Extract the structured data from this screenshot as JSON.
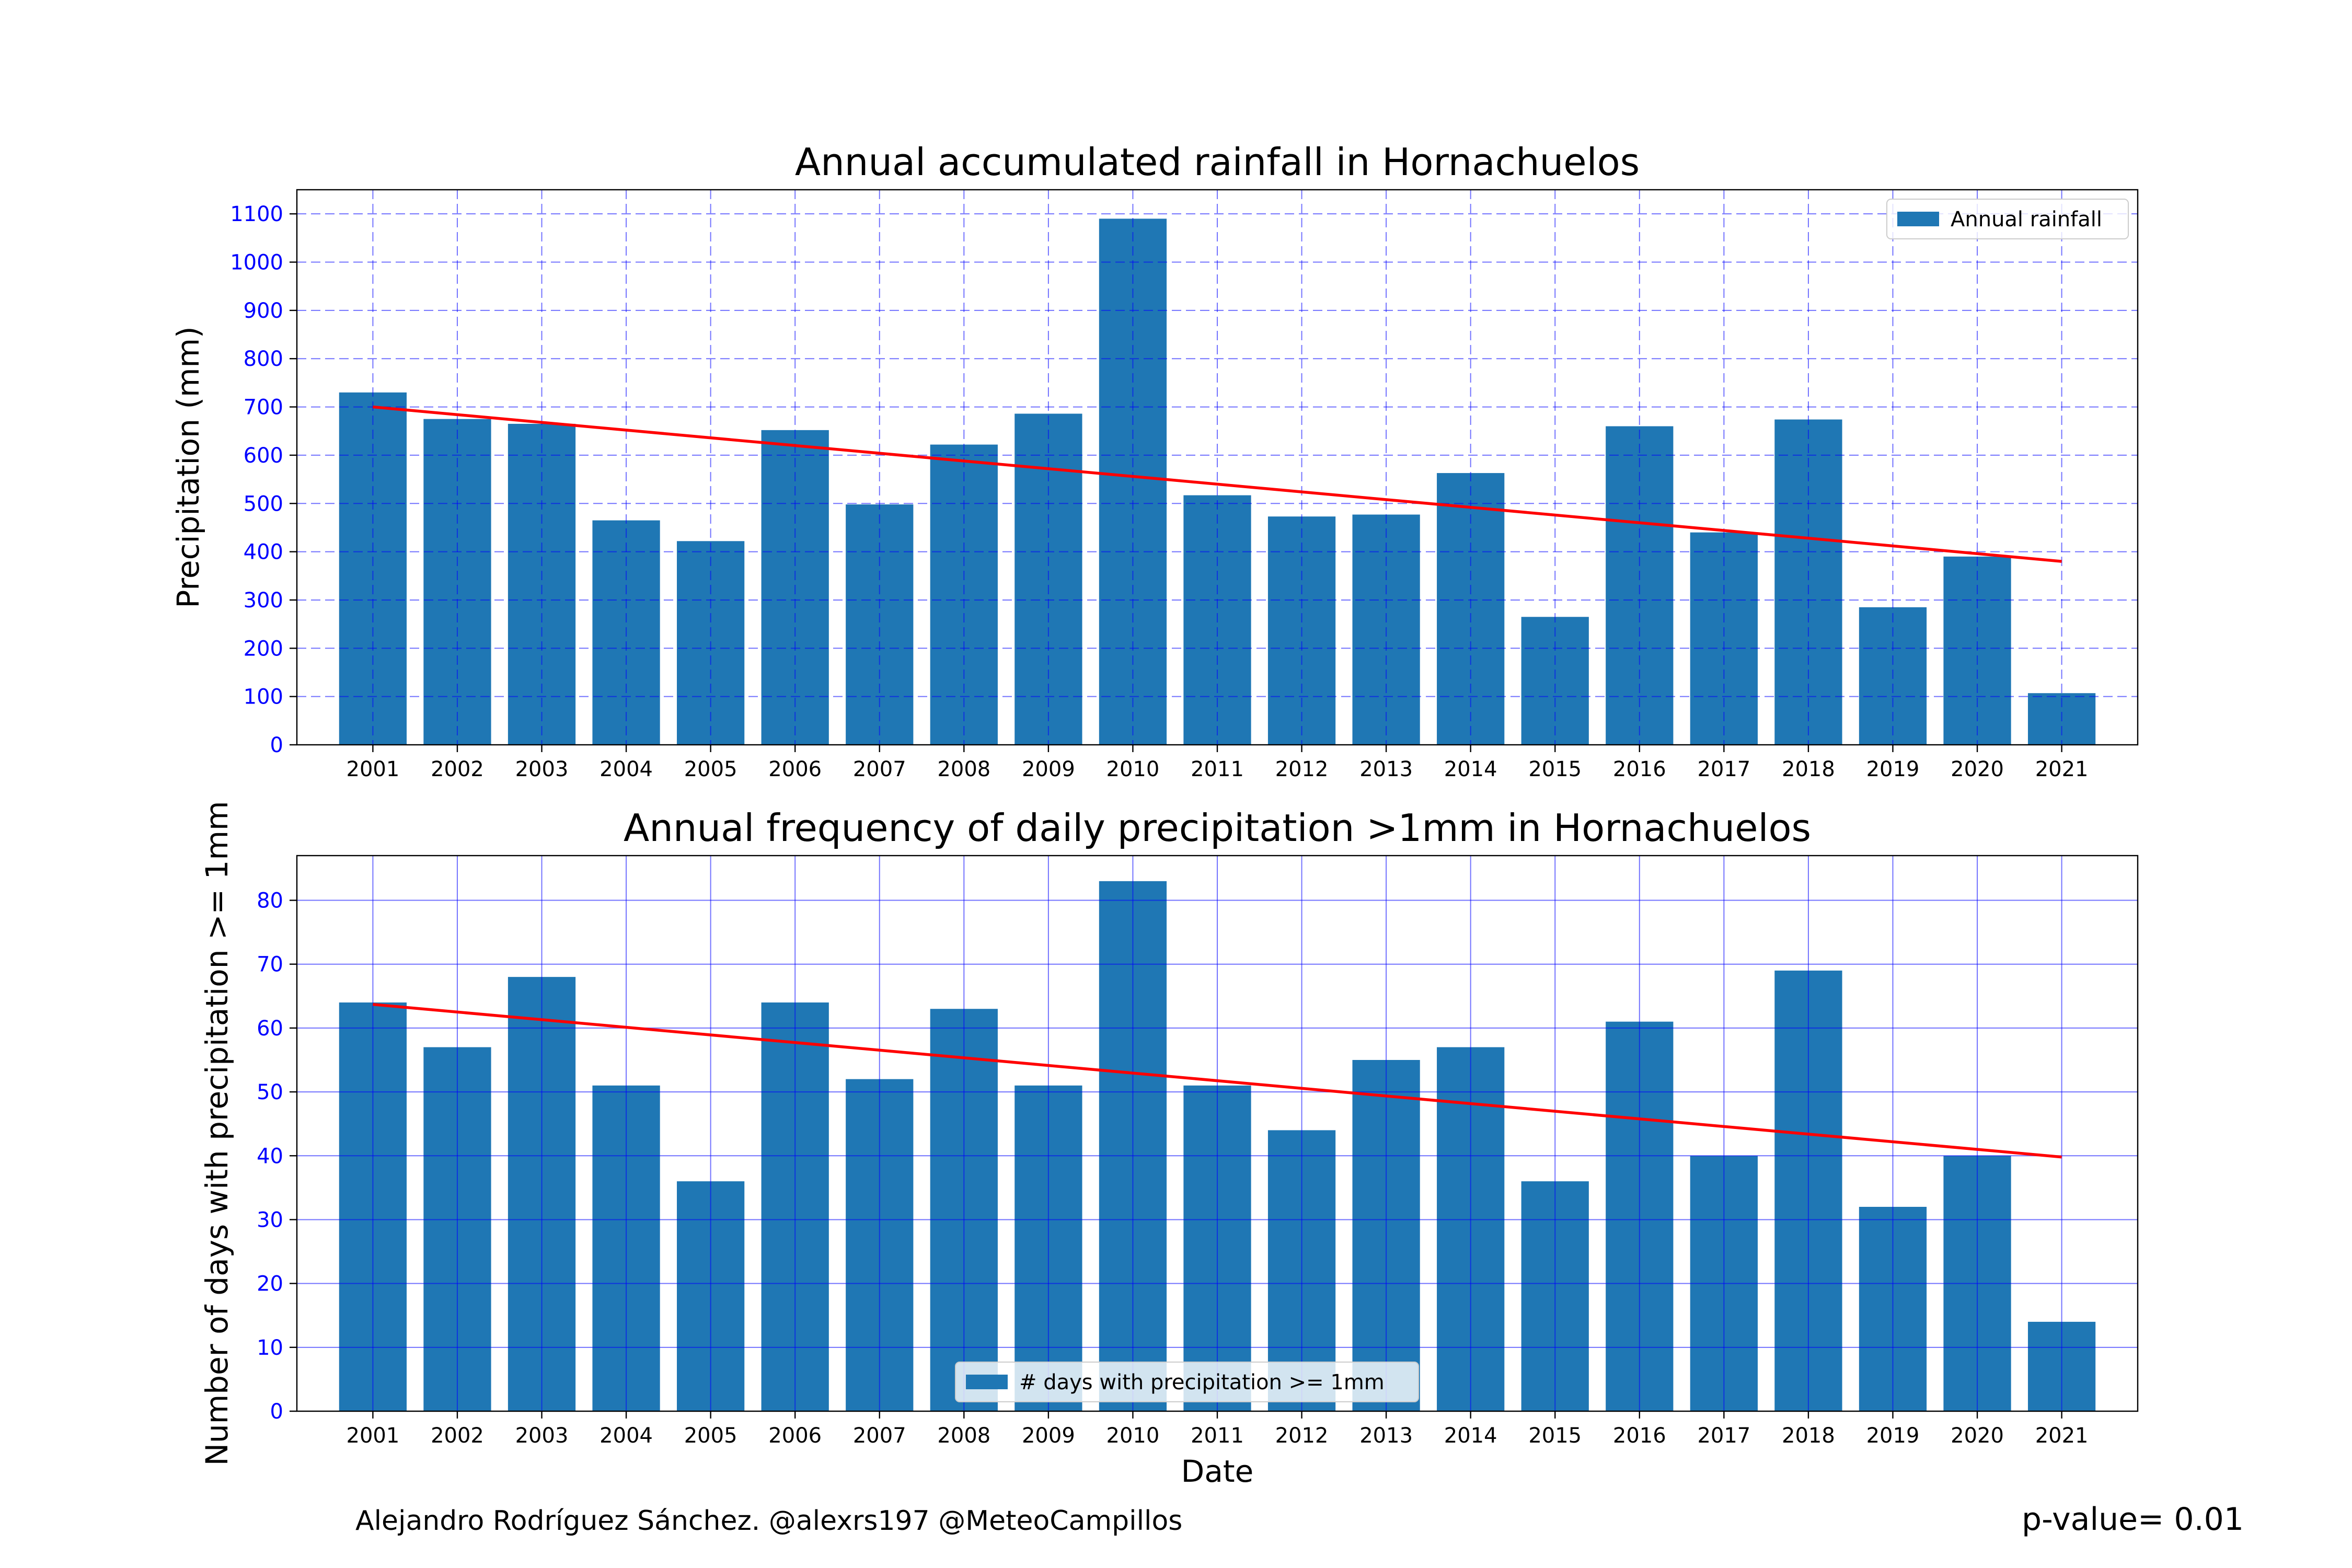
{
  "footer": {
    "credit": "Alejandro Rodríguez Sánchez. @alexrs197 @MeteoCampillos",
    "pvalue": "p-value= 0.01"
  },
  "colors": {
    "bar": "#1f77b4",
    "trend": "#ff0000",
    "grid": "#0000ff",
    "tick_label": "#0000ff"
  },
  "chart_data": [
    {
      "type": "bar",
      "title": "Annual accumulated rainfall in Hornachuelos",
      "xlabel": "",
      "ylabel": "Precipitation (mm)",
      "categories": [
        "2001",
        "2002",
        "2003",
        "2004",
        "2005",
        "2006",
        "2007",
        "2008",
        "2009",
        "2010",
        "2011",
        "2012",
        "2013",
        "2014",
        "2015",
        "2016",
        "2017",
        "2018",
        "2019",
        "2020",
        "2021"
      ],
      "series": [
        {
          "name": "Annual rainfall",
          "values": [
            730,
            675,
            665,
            465,
            422,
            652,
            498,
            622,
            686,
            1090,
            517,
            473,
            477,
            563,
            265,
            660,
            440,
            674,
            285,
            390,
            107
          ]
        }
      ],
      "trend": {
        "start": 700,
        "end": 380
      },
      "ylim": [
        0,
        1150
      ],
      "yticks": [
        0,
        100,
        200,
        300,
        400,
        500,
        600,
        700,
        800,
        900,
        1000,
        1100
      ],
      "grid": "dashed",
      "legend": "top-right"
    },
    {
      "type": "bar",
      "title": "Annual frequency of daily precipitation >1mm in Hornachuelos",
      "xlabel": "Date",
      "ylabel": "Number of days with precipitation >= 1mm",
      "categories": [
        "2001",
        "2002",
        "2003",
        "2004",
        "2005",
        "2006",
        "2007",
        "2008",
        "2009",
        "2010",
        "2011",
        "2012",
        "2013",
        "2014",
        "2015",
        "2016",
        "2017",
        "2018",
        "2019",
        "2020",
        "2021"
      ],
      "series": [
        {
          "name": "# days with precipitation >= 1mm",
          "values": [
            64,
            57,
            68,
            51,
            36,
            64,
            52,
            63,
            51,
            83,
            51,
            44,
            55,
            57,
            36,
            61,
            40,
            69,
            32,
            40,
            14
          ]
        }
      ],
      "trend": {
        "start": 63.7,
        "end": 39.8
      },
      "ylim": [
        0,
        87
      ],
      "yticks": [
        0,
        10,
        20,
        30,
        40,
        50,
        60,
        70,
        80
      ],
      "grid": "solid",
      "legend": "bottom-center"
    }
  ]
}
